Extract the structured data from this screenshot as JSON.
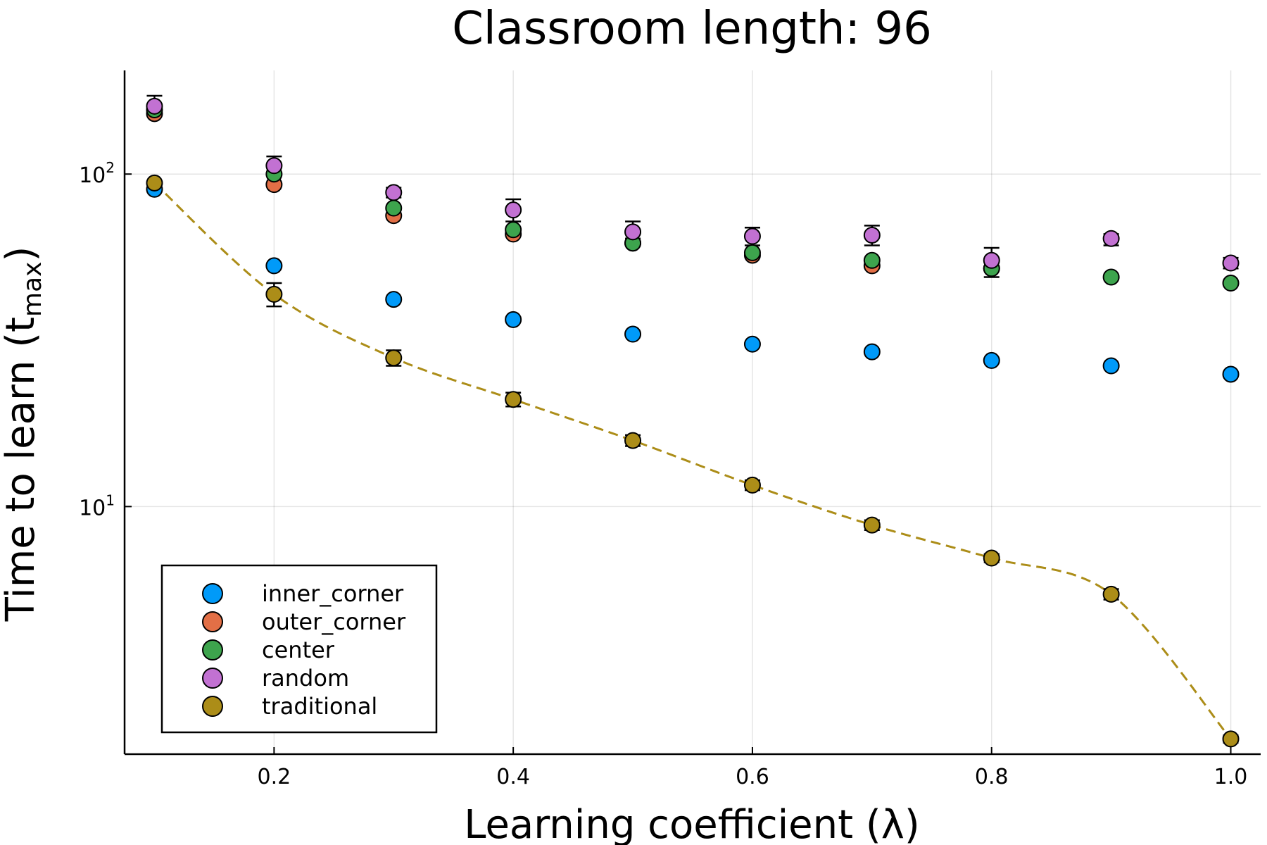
{
  "chart_data": {
    "type": "scatter",
    "title": "Classroom length: 96",
    "xlabel": "Learning coefficient (λ)",
    "ylabel_main": "Time to learn (t",
    "ylabel_sub": "max",
    "ylabel_end": ")",
    "yscale": "log10",
    "xlim": [
      0.075,
      1.025
    ],
    "ylim": [
      1.8,
      205
    ],
    "grid": true,
    "legend_position": "bottom-left",
    "x_ticks": [
      {
        "value": 0.2,
        "label": "0.2"
      },
      {
        "value": 0.4,
        "label": "0.4"
      },
      {
        "value": 0.6,
        "label": "0.6"
      },
      {
        "value": 0.8,
        "label": "0.8"
      },
      {
        "value": 1.0,
        "label": "1.0"
      }
    ],
    "y_ticks": [
      {
        "value": 10,
        "base": "10",
        "exp": "1"
      },
      {
        "value": 100,
        "base": "10",
        "exp": "2"
      }
    ],
    "x": [
      0.1,
      0.2,
      0.3,
      0.4,
      0.5,
      0.6,
      0.7,
      0.8,
      0.9,
      1.0
    ],
    "series": [
      {
        "name": "outer_corner",
        "color": "#e26f46",
        "y": [
          152,
          93,
          75,
          66,
          62,
          57,
          53,
          52,
          null,
          null
        ],
        "err": [
          null,
          null,
          null,
          null,
          null,
          null,
          null,
          null,
          null,
          null
        ]
      },
      {
        "name": "center",
        "color": "#3da44d",
        "y": [
          156,
          100,
          79,
          68,
          62,
          58,
          55,
          52,
          49,
          47
        ],
        "err": [
          null,
          null,
          null,
          null,
          null,
          null,
          null,
          null,
          null,
          null
        ]
      },
      {
        "name": "inner_corner",
        "color": "#009af9",
        "y": [
          90,
          53,
          42,
          36.5,
          33,
          30.8,
          29.2,
          27.5,
          26.5,
          25
        ],
        "err": [
          null,
          null,
          null,
          null,
          null,
          null,
          null,
          null,
          null,
          null
        ]
      },
      {
        "name": "random",
        "color": "#c271d2",
        "y": [
          160,
          106,
          88,
          78,
          67,
          65,
          65.5,
          55,
          64,
          54
        ],
        "err": [
          [
            150,
            172
          ],
          [
            99,
            113
          ],
          [
            85,
            91
          ],
          [
            72,
            84
          ],
          [
            64,
            72
          ],
          [
            61,
            69
          ],
          [
            61,
            70
          ],
          [
            49,
            60
          ],
          [
            61,
            66
          ],
          [
            52,
            56
          ]
        ]
      },
      {
        "name": "traditional",
        "color": "#ac8d18",
        "y": [
          94,
          43.5,
          28,
          21,
          15.8,
          11.6,
          8.8,
          7.0,
          5.45,
          2.0
        ],
        "err": [
          null,
          [
            40,
            47
          ],
          [
            26.5,
            29.5
          ],
          [
            20,
            22
          ],
          [
            15.2,
            16.4
          ],
          [
            11.2,
            12.0
          ],
          [
            8.5,
            9.1
          ],
          [
            6.8,
            7.2
          ],
          [
            5.25,
            5.65
          ],
          [
            1.95,
            2.05
          ]
        ],
        "trend_line": true
      }
    ],
    "legend_entries": [
      {
        "name": "inner_corner",
        "color": "#009af9"
      },
      {
        "name": "outer_corner",
        "color": "#e26f46"
      },
      {
        "name": "center",
        "color": "#3da44d"
      },
      {
        "name": "random",
        "color": "#c271d2"
      },
      {
        "name": "traditional",
        "color": "#ac8d18"
      }
    ]
  }
}
